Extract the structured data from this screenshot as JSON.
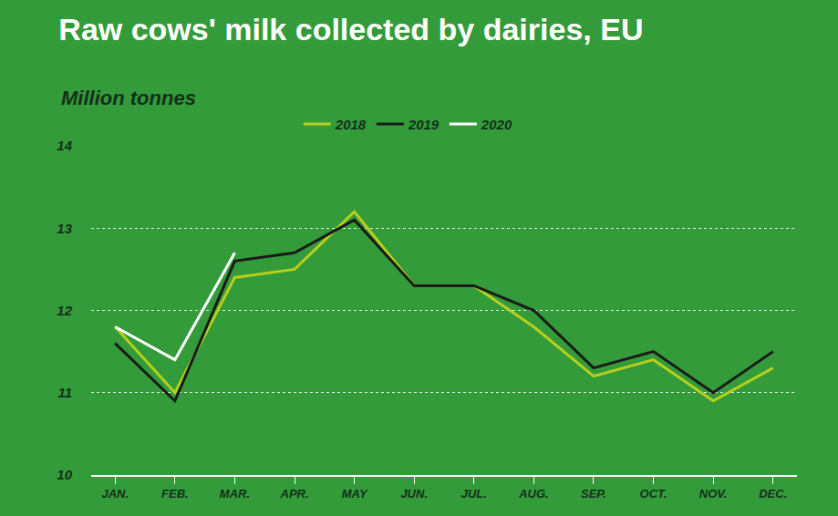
{
  "chart_data": {
    "type": "line",
    "title": "Raw cows' milk collected by dairies, EU",
    "subtitle": "Million tonnes",
    "categories": [
      "JAN.",
      "FEB.",
      "MAR.",
      "APR.",
      "MAY",
      "JUN.",
      "JUL.",
      "AUG.",
      "SEP.",
      "OCT.",
      "NOV.",
      "DEC."
    ],
    "series": [
      {
        "name": "2018",
        "color": "#b8cf1c",
        "values": [
          11.8,
          11.0,
          12.4,
          12.5,
          13.2,
          12.3,
          12.3,
          11.8,
          11.2,
          11.4,
          10.9,
          11.3
        ]
      },
      {
        "name": "2019",
        "color": "#1a1a1a",
        "values": [
          11.6,
          10.9,
          12.6,
          12.7,
          13.1,
          12.3,
          12.3,
          12.0,
          11.3,
          11.5,
          11.0,
          11.5
        ]
      },
      {
        "name": "2020",
        "color": "#ffffff",
        "values": [
          11.8,
          11.4,
          12.7,
          null,
          null,
          null,
          null,
          null,
          null,
          null,
          null,
          null
        ]
      }
    ],
    "ylim": [
      10,
      14
    ],
    "yticks": [
      10,
      11,
      12,
      13,
      14
    ],
    "grid": true,
    "legend": "top"
  }
}
